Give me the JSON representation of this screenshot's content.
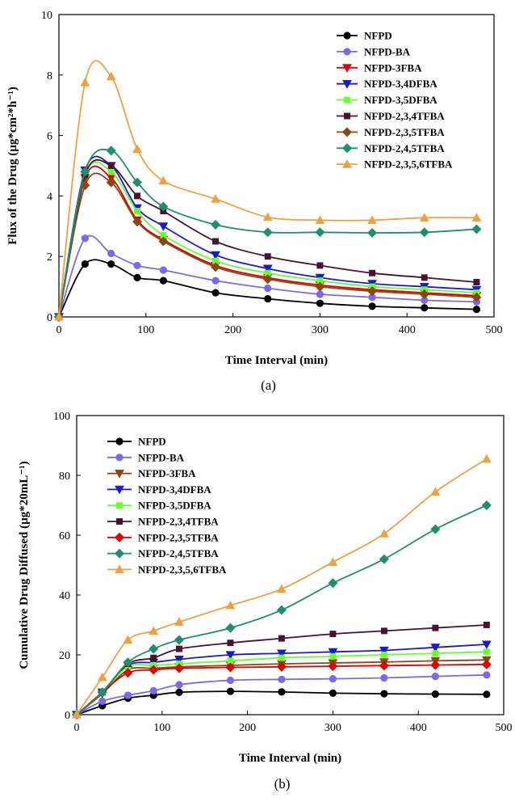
{
  "chart_data": [
    {
      "type": "line",
      "caption": "(a)",
      "xlabel": "Time Interval (min)",
      "ylabel": "Flux of the Drug (µg*cm²*h⁻¹)",
      "xlim": [
        0,
        500
      ],
      "ylim": [
        0,
        10
      ],
      "xticks": [
        0,
        100,
        200,
        300,
        400,
        500
      ],
      "yticks": [
        0,
        2,
        4,
        6,
        8,
        10
      ],
      "grid": false,
      "legend_position": "top-right",
      "x": [
        0,
        30,
        60,
        90,
        120,
        180,
        240,
        300,
        360,
        420,
        480
      ],
      "series": [
        {
          "name": "NFPD",
          "color": "#000000",
          "marker": "circle",
          "values": [
            0,
            1.75,
            1.75,
            1.3,
            1.2,
            0.8,
            0.6,
            0.45,
            0.35,
            0.3,
            0.25
          ]
        },
        {
          "name": "NFPD-BA",
          "color": "#7b68ee",
          "marker": "circle",
          "values": [
            0,
            2.6,
            2.1,
            1.7,
            1.55,
            1.2,
            0.95,
            0.75,
            0.65,
            0.55,
            0.5
          ]
        },
        {
          "name": "NFPD-3FBA",
          "color": "#e00000",
          "marker": "triangle-down",
          "values": [
            0,
            4.6,
            4.6,
            3.2,
            2.55,
            1.7,
            1.3,
            1.05,
            0.9,
            0.8,
            0.7
          ]
        },
        {
          "name": "NFPD-3,4DFBA",
          "color": "#1a1acc",
          "marker": "triangle-down",
          "values": [
            0,
            4.85,
            5.0,
            3.6,
            3.0,
            2.05,
            1.6,
            1.3,
            1.1,
            1.0,
            0.9
          ]
        },
        {
          "name": "NFPD-3,5DFBA",
          "color": "#66ff33",
          "marker": "square",
          "values": [
            0,
            4.7,
            4.8,
            3.5,
            2.7,
            1.85,
            1.45,
            1.2,
            1.0,
            0.9,
            0.8
          ]
        },
        {
          "name": "NFPD-2,3,4TFBA",
          "color": "#4b1030",
          "marker": "square",
          "values": [
            0,
            4.7,
            5.0,
            4.0,
            3.5,
            2.5,
            2.0,
            1.7,
            1.45,
            1.3,
            1.15
          ]
        },
        {
          "name": "NFPD-2,3,5TFBA",
          "color": "#8b4513",
          "marker": "diamond",
          "values": [
            0,
            4.35,
            4.45,
            3.15,
            2.5,
            1.65,
            1.25,
            1.0,
            0.85,
            0.75,
            0.65
          ]
        },
        {
          "name": "NFPD-2,4,5TFBA",
          "color": "#1e8e6e",
          "marker": "diamond",
          "values": [
            0,
            4.8,
            5.5,
            4.45,
            3.65,
            3.05,
            2.8,
            2.8,
            2.78,
            2.8,
            2.9
          ]
        },
        {
          "name": "NFPD-2,3,5,6TFBA",
          "color": "#f0a040",
          "marker": "triangle-up",
          "values": [
            0,
            7.75,
            7.95,
            5.55,
            4.5,
            3.9,
            3.3,
            3.2,
            3.2,
            3.28,
            3.28
          ]
        }
      ]
    },
    {
      "type": "line",
      "caption": "(b)",
      "xlabel": "Time Interval (min)",
      "ylabel": "Cumulative Drug Diffused (µg*20mL⁻¹)",
      "xlim": [
        0,
        500
      ],
      "ylim": [
        0,
        100
      ],
      "xticks": [
        0,
        100,
        200,
        300,
        400,
        500
      ],
      "yticks": [
        0,
        20,
        40,
        60,
        80,
        100
      ],
      "grid": false,
      "legend_position": "top-left",
      "x": [
        0,
        30,
        60,
        90,
        120,
        180,
        240,
        300,
        360,
        420,
        480
      ],
      "series": [
        {
          "name": "NFPD",
          "color": "#000000",
          "marker": "circle",
          "values": [
            0,
            3,
            5.5,
            6.5,
            7.5,
            7.8,
            7.6,
            7.2,
            7.0,
            6.9,
            6.8
          ]
        },
        {
          "name": "NFPD-BA",
          "color": "#7b68ee",
          "marker": "circle",
          "values": [
            0,
            4.5,
            6.5,
            8.0,
            10.0,
            11.5,
            11.8,
            12.0,
            12.3,
            12.8,
            13.3
          ]
        },
        {
          "name": "NFPD-3FBA",
          "color": "#8b4513",
          "marker": "triangle-down",
          "values": [
            0,
            7,
            15,
            15.5,
            16,
            16.5,
            17,
            17.3,
            17.6,
            18,
            18.3
          ]
        },
        {
          "name": "NFPD-3,4DFBA",
          "color": "#1a1acc",
          "marker": "triangle-down",
          "values": [
            0,
            7.5,
            16.5,
            17.5,
            18.5,
            20,
            20.5,
            21,
            21.5,
            22.5,
            23.5
          ]
        },
        {
          "name": "NFPD-3,5DFBA",
          "color": "#66ff33",
          "marker": "square",
          "values": [
            0,
            7.5,
            16,
            16.5,
            17,
            18,
            19,
            19.5,
            20,
            20.5,
            21
          ]
        },
        {
          "name": "NFPD-2,3,4TFBA",
          "color": "#4b1030",
          "marker": "square",
          "values": [
            0,
            7.5,
            17,
            19,
            22,
            24,
            25.5,
            27,
            28,
            29,
            30
          ]
        },
        {
          "name": "NFPD-2,3,5TFBA",
          "color": "#e00000",
          "marker": "diamond",
          "values": [
            0,
            7.5,
            14,
            15,
            15.5,
            15.8,
            16,
            16.2,
            16.4,
            16.6,
            16.8
          ]
        },
        {
          "name": "NFPD-2,4,5TFBA",
          "color": "#1e8e6e",
          "marker": "diamond",
          "values": [
            0,
            7.5,
            17.5,
            22,
            25,
            29,
            35,
            44,
            52,
            62,
            70
          ]
        },
        {
          "name": "NFPD-2,3,5,6TFBA",
          "color": "#f0a040",
          "marker": "triangle-up",
          "values": [
            0,
            12.5,
            25,
            28,
            31,
            36.5,
            42,
            51,
            60.5,
            74.5,
            85.5
          ]
        }
      ]
    }
  ]
}
